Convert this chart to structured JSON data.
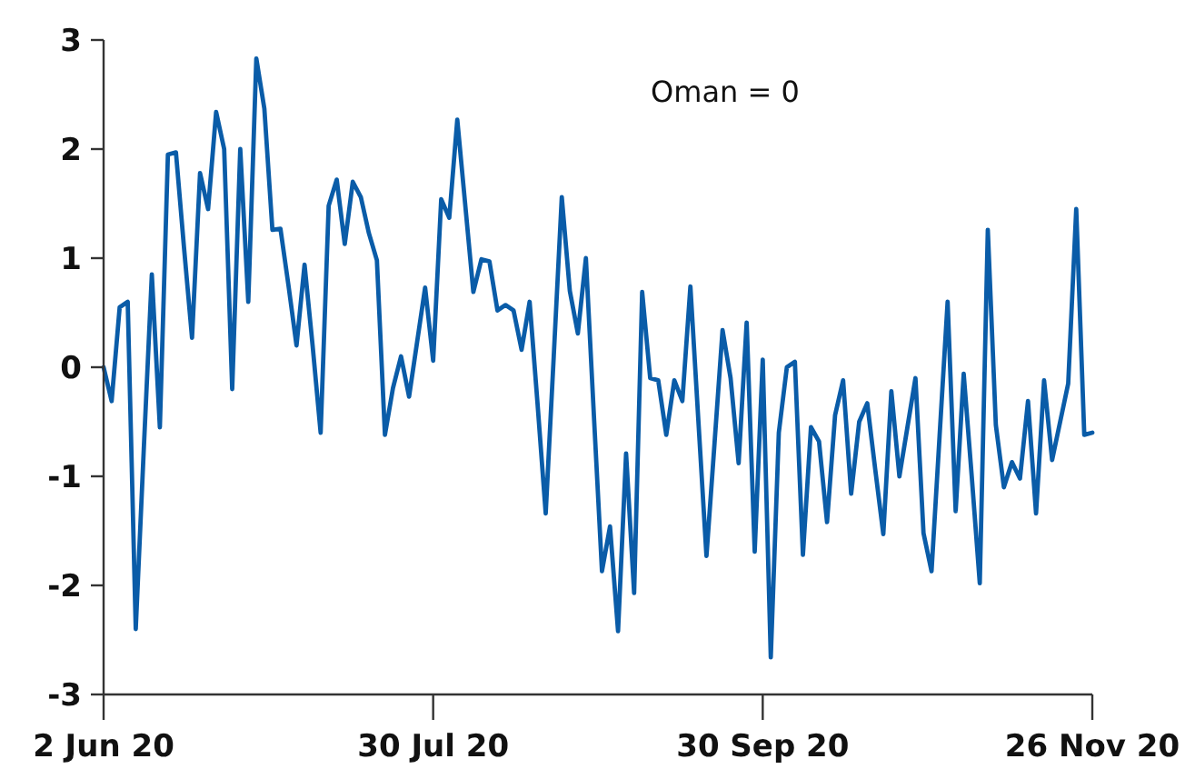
{
  "chart_data": {
    "type": "line",
    "categories": [
      "2 Jun 20",
      null,
      null,
      null,
      null,
      null,
      null,
      null,
      null,
      null,
      null,
      null,
      null,
      null,
      null,
      null,
      null,
      null,
      null,
      null,
      null,
      null,
      null,
      null,
      null,
      null,
      null,
      null,
      null,
      null,
      null,
      null,
      null,
      null,
      null,
      null,
      null,
      null,
      null,
      null,
      null,
      "30 Jul 20",
      null,
      null,
      null,
      null,
      null,
      null,
      null,
      null,
      null,
      null,
      null,
      null,
      null,
      null,
      null,
      null,
      null,
      null,
      null,
      null,
      null,
      null,
      null,
      null,
      null,
      null,
      null,
      null,
      null,
      null,
      null,
      null,
      null,
      null,
      null,
      null,
      null,
      null,
      null,
      null,
      "30 Sep 20",
      null,
      null,
      null,
      null,
      null,
      null,
      null,
      null,
      null,
      null,
      null,
      null,
      null,
      null,
      null,
      null,
      null,
      null,
      null,
      null,
      null,
      null,
      null,
      null,
      null,
      null,
      null,
      null,
      null,
      null,
      null,
      null,
      null,
      null,
      null,
      null,
      null,
      null,
      null,
      null,
      "26 Nov 20"
    ],
    "series": [
      {
        "color": "#0a5ca8",
        "values": [
          0.0,
          -0.31,
          0.55,
          0.6,
          -2.4,
          -0.75,
          0.85,
          -0.55,
          1.95,
          1.97,
          1.1,
          0.27,
          1.78,
          1.45,
          2.34,
          2.0,
          -0.2,
          2.0,
          0.6,
          2.83,
          2.37,
          1.26,
          1.27,
          0.75,
          0.2,
          0.94,
          0.2,
          -0.6,
          1.48,
          1.72,
          1.13,
          1.7,
          1.56,
          1.23,
          0.98,
          -0.62,
          -0.19,
          0.1,
          -0.27,
          0.23,
          0.73,
          0.06,
          1.54,
          1.37,
          2.27,
          1.48,
          0.69,
          0.99,
          0.97,
          0.52,
          0.57,
          0.52,
          0.16,
          0.6,
          -0.35,
          -1.34,
          0.1,
          1.56,
          0.7,
          0.31,
          1.0,
          -0.45,
          -1.87,
          -1.46,
          -2.42,
          -0.79,
          -2.07,
          0.69,
          -0.1,
          -0.12,
          -0.62,
          -0.12,
          -0.31,
          0.74,
          -0.5,
          -1.73,
          -0.7,
          0.34,
          -0.1,
          -0.88,
          0.41,
          -1.69,
          0.07,
          -2.66,
          -0.6,
          0.0,
          0.05,
          -1.72,
          -0.55,
          -0.68,
          -1.42,
          -0.44,
          -0.12,
          -1.16,
          -0.5,
          -0.33,
          -0.94,
          -1.53,
          -0.22,
          -1.0,
          -0.55,
          -0.1,
          -1.52,
          -1.87,
          -0.63,
          0.6,
          -1.32,
          -0.06,
          -1.0,
          -1.98,
          1.26,
          -0.53,
          -1.1,
          -0.87,
          -1.02,
          -0.31,
          -1.34,
          -0.12,
          -0.85,
          -0.5,
          -0.15,
          1.45,
          -0.62,
          -0.6
        ]
      }
    ],
    "ylim": [
      -3,
      3
    ],
    "yticks": [
      -3,
      -2,
      -1,
      0,
      1,
      2,
      3
    ],
    "annotations": [
      "Oman = 0"
    ],
    "grid": false
  }
}
